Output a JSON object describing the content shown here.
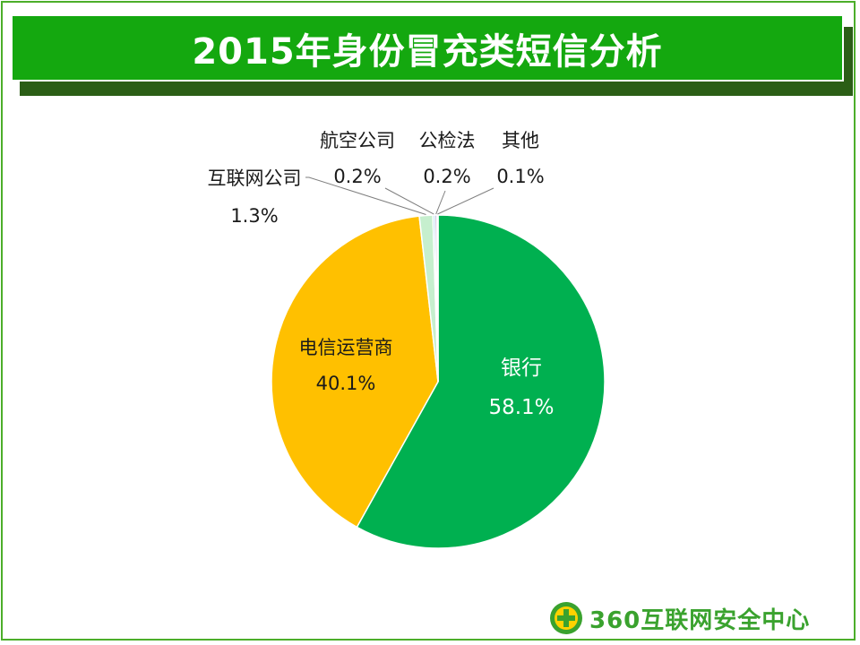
{
  "title": "2015年身份冒充类短信分析",
  "brand": {
    "name": "360互联网安全中心"
  },
  "chart_data": {
    "type": "pie",
    "title": "2015年身份冒充类短信分析",
    "slices": [
      {
        "label": "银行",
        "value": 58.1,
        "display": "58.1%",
        "color": "#00b050"
      },
      {
        "label": "电信运营商",
        "value": 40.1,
        "display": "40.1%",
        "color": "#ffc000"
      },
      {
        "label": "互联网公司",
        "value": 1.3,
        "display": "1.3%",
        "color": "#c6efce"
      },
      {
        "label": "航空公司",
        "value": 0.2,
        "display": "0.2%",
        "color": "#a6d7ec"
      },
      {
        "label": "公检法",
        "value": 0.2,
        "display": "0.2%",
        "color": "#b4a7d6"
      },
      {
        "label": "其他",
        "value": 0.1,
        "display": "0.1%",
        "color": "#e6b8b7"
      }
    ]
  }
}
